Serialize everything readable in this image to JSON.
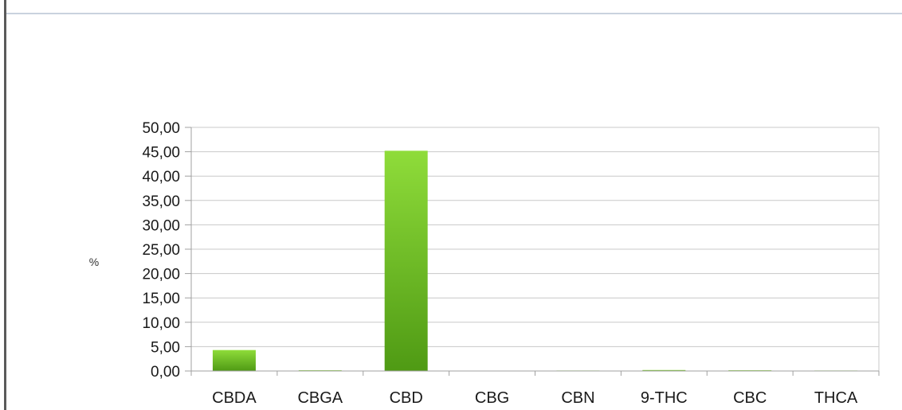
{
  "chart_data": {
    "type": "bar",
    "title": "",
    "xlabel": "",
    "ylabel": "%",
    "categories": [
      "CBDA",
      "CBGA",
      "CBD",
      "CBG",
      "CBN",
      "9-THC",
      "CBC",
      "THCA"
    ],
    "values": [
      4.3,
      0.15,
      45.2,
      0.0,
      0.1,
      0.2,
      0.15,
      0.1
    ],
    "ylim": [
      0,
      50
    ],
    "yticks": [
      "0,00",
      "5,00",
      "10,00",
      "15,00",
      "20,00",
      "25,00",
      "30,00",
      "35,00",
      "40,00",
      "45,00",
      "50,00"
    ],
    "grid": true,
    "legend": "none",
    "colors": {
      "bar_light": "#8fdc3a",
      "bar_dark": "#4f9a14",
      "grid": "#c8c8c8",
      "axis": "#a0a0a0"
    }
  }
}
